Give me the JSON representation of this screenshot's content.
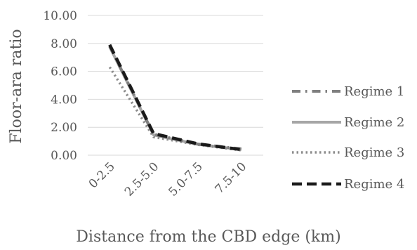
{
  "chart_data": {
    "type": "line",
    "title": "",
    "xlabel": "Distance from the CBD edge (km)",
    "ylabel": "Floor-ara ratio",
    "categories": [
      "0-2.5",
      "2.5-5.0",
      "5.0-7.5",
      "7.5-10"
    ],
    "ylim": [
      0,
      10
    ],
    "yticks": [
      "0.00",
      "2.00",
      "4.00",
      "6.00",
      "8.00",
      "10.00"
    ],
    "grid": true,
    "legend_position": "right",
    "series": [
      {
        "name": "Regime 1",
        "values": [
          7.8,
          1.5,
          0.8,
          0.45
        ],
        "color": "#7f7f7f",
        "dash": "dash-dot"
      },
      {
        "name": "Regime 2",
        "values": [
          7.75,
          1.45,
          0.78,
          0.4
        ],
        "color": "#a6a6a6",
        "dash": "solid"
      },
      {
        "name": "Regime 3",
        "values": [
          6.3,
          1.3,
          0.75,
          0.35
        ],
        "color": "#8c8c8c",
        "dash": "dot"
      },
      {
        "name": "Regime 4",
        "values": [
          7.9,
          1.55,
          0.82,
          0.4
        ],
        "color": "#1a1a1a",
        "dash": "dash"
      }
    ]
  }
}
